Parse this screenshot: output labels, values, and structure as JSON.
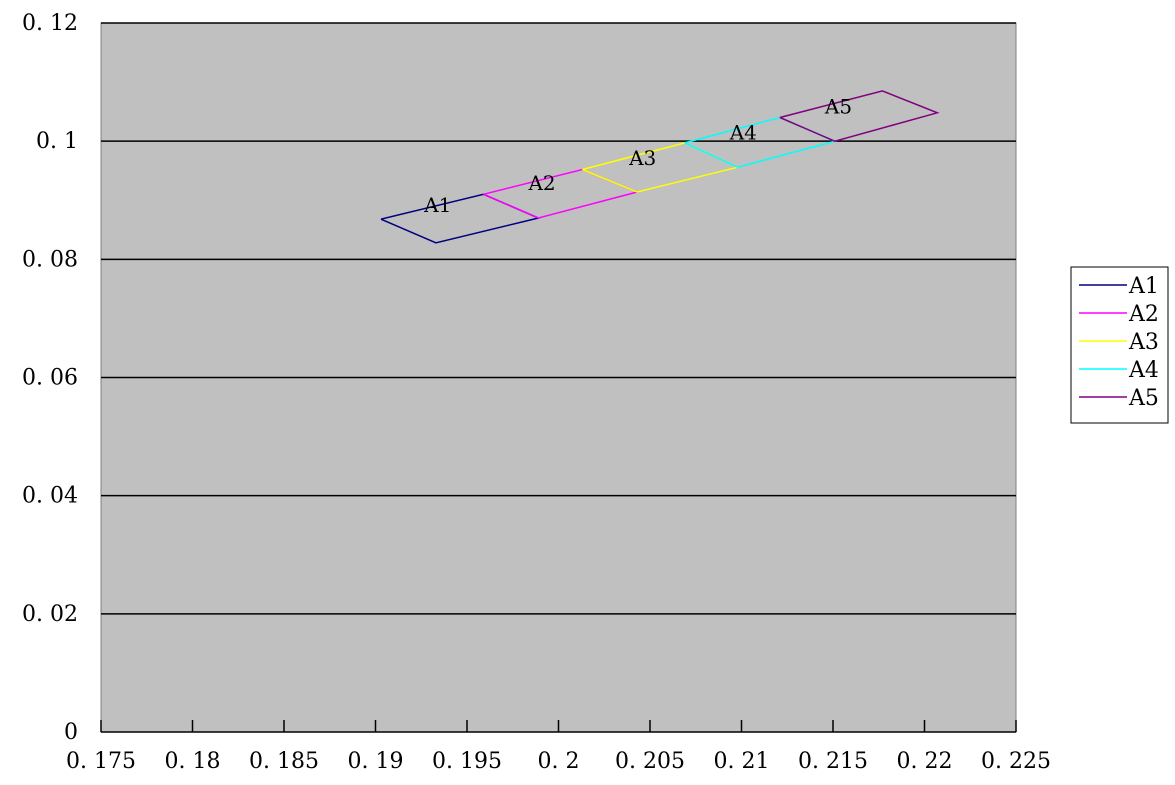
{
  "chart_data": {
    "type": "line",
    "title": "",
    "xlabel": "",
    "ylabel": "",
    "xlim": [
      0.175,
      0.225
    ],
    "ylim": [
      0,
      0.12
    ],
    "x_ticks": [
      "0.175",
      "0.18",
      "0.185",
      "0.19",
      "0.195",
      "0.2",
      "0.205",
      "0.21",
      "0.215",
      "0.22",
      "0.225"
    ],
    "y_ticks": [
      "0",
      "0.02",
      "0.04",
      "0.06",
      "0.08",
      "0.1",
      "0.12"
    ],
    "grid": "horizontal",
    "plot_background": "#C0C0C0",
    "legend_position": "right",
    "series": [
      {
        "name": "A1",
        "color": "#000080",
        "points": [
          [
            0.1903,
            0.0868
          ],
          [
            0.1959,
            0.091
          ],
          [
            0.1989,
            0.087
          ],
          [
            0.1933,
            0.0828
          ],
          [
            0.1903,
            0.0868
          ]
        ]
      },
      {
        "name": "A2",
        "color": "#FF00FF",
        "points": [
          [
            0.1959,
            0.091
          ],
          [
            0.2013,
            0.0952
          ],
          [
            0.2043,
            0.0914
          ],
          [
            0.1989,
            0.087
          ],
          [
            0.1959,
            0.091
          ]
        ]
      },
      {
        "name": "A3",
        "color": "#FFFF00",
        "points": [
          [
            0.2013,
            0.0952
          ],
          [
            0.2069,
            0.0997
          ],
          [
            0.2098,
            0.0956
          ],
          [
            0.2043,
            0.0914
          ],
          [
            0.2013,
            0.0952
          ]
        ]
      },
      {
        "name": "A4",
        "color": "#00FFFF",
        "points": [
          [
            0.2069,
            0.0997
          ],
          [
            0.2121,
            0.104
          ],
          [
            0.2151,
            0.1
          ],
          [
            0.2098,
            0.0956
          ],
          [
            0.2069,
            0.0997
          ]
        ]
      },
      {
        "name": "A5",
        "color": "#800080",
        "points": [
          [
            0.2121,
            0.104
          ],
          [
            0.2177,
            0.1085
          ],
          [
            0.2207,
            0.1048
          ],
          [
            0.2151,
            0.1
          ],
          [
            0.2121,
            0.104
          ]
        ]
      }
    ],
    "annotations": [
      {
        "text": "A1",
        "x": 0.1934,
        "y": 0.088
      },
      {
        "text": "A2",
        "x": 0.1991,
        "y": 0.0917
      },
      {
        "text": "A3",
        "x": 0.2046,
        "y": 0.096
      },
      {
        "text": "A4",
        "x": 0.2101,
        "y": 0.1003
      },
      {
        "text": "A5",
        "x": 0.2153,
        "y": 0.1047
      }
    ]
  }
}
